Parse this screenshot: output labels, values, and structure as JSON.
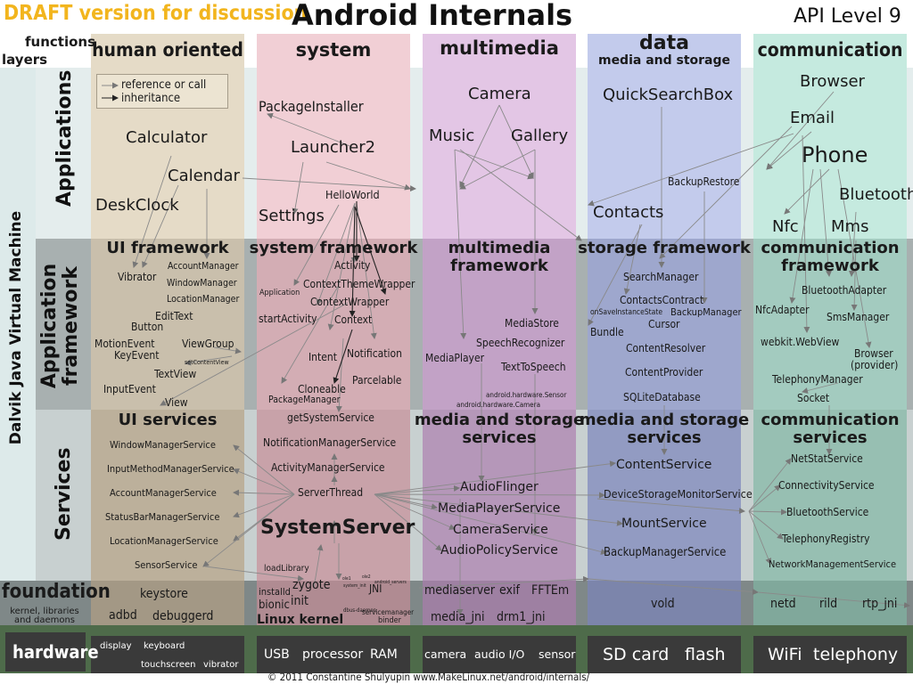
{
  "header": {
    "draft": "DRAFT version for discussion",
    "title": "Android Internals",
    "api": "API Level 9",
    "functions": "functions",
    "layers": "layers"
  },
  "sidebar": {
    "vm": "Dalvik Java Virtual Machine",
    "applications": "Applications",
    "app_framework": "Application framework",
    "services": "Services",
    "foundation": "foundation",
    "foundation_sub": "kernel, libraries and daemons",
    "hardware": "hardware"
  },
  "legend": {
    "reference": "reference or call",
    "inheritance": "inheritance"
  },
  "columns": {
    "human": "human oriented",
    "system": "system",
    "multimedia": "multimedia",
    "data": "data",
    "data_sub": "media and storage",
    "communication": "communication"
  },
  "colors": {
    "human": "#e5dbc7",
    "system": "#eec8cf",
    "multimedia": "#dcbcdf",
    "data": "#b9c2e6",
    "communication": "#bde6d9",
    "hardware": "#4e6b4a"
  },
  "apps": {
    "calculator": "Calculator",
    "calendar": "Calendar",
    "deskclock": "DeskClock",
    "packageinstaller": "PackageInstaller",
    "launcher2": "Launcher2",
    "helloworld": "HelloWorld",
    "settings": "Settings",
    "camera": "Camera",
    "music": "Music",
    "gallery": "Gallery",
    "quicksearchbox": "QuickSearchBox",
    "backuprestore": "BackupRestore",
    "contacts": "Contacts",
    "browser": "Browser",
    "email": "Email",
    "phone": "Phone",
    "bluetooth": "Bluetooth",
    "nfc": "Nfc",
    "mms": "Mms"
  },
  "frameworks": {
    "ui": "UI framework",
    "system": "system framework",
    "multimedia": "multimedia framework",
    "storage": "storage framework",
    "communication": "communication framework"
  },
  "fw": {
    "vibrator": "Vibrator",
    "accountmanager": "AccountManager",
    "windowmanager": "WindowManager",
    "locationmanager": "LocationManager",
    "edittext": "EditText",
    "button": "Button",
    "motionevent": "MotionEvent",
    "keyevent": "KeyEvent",
    "viewgroup": "ViewGroup",
    "setcontentview": "setContentView",
    "textview": "TextView",
    "inputevent": "InputEvent",
    "view": "View",
    "activity": "Activity",
    "contextthemewrapper": "ContextThemeWrapper",
    "application": "Application",
    "contextwrapper": "ContextWrapper",
    "startactivity": "startActivity",
    "context": "Context",
    "notification": "Notification",
    "intent": "Intent",
    "parcelable": "Parcelable",
    "cloneable": "Cloneable",
    "packagemanager": "PackageManager",
    "mediastore": "MediaStore",
    "speechrecognizer": "SpeechRecognizer",
    "mediaplayer": "MediaPlayer",
    "texttospeech": "TextToSpeech",
    "hwsensor": "android.hardware.Sensor",
    "hwcamera": "android.hardware.Camera",
    "searchmanager": "SearchManager",
    "contactscontract": "ContactsContract",
    "oninstancestate": "onSaveInstanceState",
    "backupmanager": "BackupManager",
    "bundle": "Bundle",
    "cursor": "Cursor",
    "contentresolver": "ContentResolver",
    "contentprovider": "ContentProvider",
    "sqlitedatabase": "SQLiteDatabase",
    "bluetoothadapter": "BluetoothAdapter",
    "nfcadapter": "NfcAdapter",
    "smsmanager": "SmsManager",
    "webview": "webkit.WebView",
    "browser_provider": "Browser",
    "browser_provider2": "(provider)",
    "telephonymanager": "TelephonyManager",
    "socket": "Socket"
  },
  "services_titles": {
    "ui": "UI services",
    "media_storage_1": "media and storage",
    "media_storage_2": "services",
    "data_1": "media and storage",
    "data_2": "services",
    "comm_1": "communication",
    "comm_2": "services"
  },
  "svc": {
    "windowmanagerservice": "WindowManagerService",
    "inputmethodmanagerservice": "InputMethodManagerService",
    "accountmanagerservice": "AccountManagerService",
    "statusbarmanagerservice": "StatusBarManagerService",
    "locationmanagerservice": "LocationManagerService",
    "sensorservice": "SensorService",
    "getsystemservice": "getSystemService",
    "notificationmanagerservice": "NotificationManagerService",
    "activitymanagerservice": "ActivityManagerService",
    "serverthread": "ServerThread",
    "systemserver": "SystemServer",
    "loadlibrary": "loadLibrary",
    "audioflinger": "AudioFlinger",
    "mediaplayerservice": "MediaPlayerService",
    "cameraservice": "CameraService",
    "audiopolicyservice": "AudioPolicyService",
    "contentservice": "ContentService",
    "devicestoragemonitorservice": "DeviceStorageMonitorService",
    "mountservice": "MountService",
    "backupmanagerservice": "BackupManagerService",
    "netstatservice": "NetStatService",
    "connectivityservice": "ConnectivityService",
    "bluetoothservice": "BluetoothService",
    "telephonyregistry": "TelephonyRegistry",
    "networkmanagementservice": "NetworkManagementService",
    "tiny1": "ole1",
    "tiny2": "ole2",
    "tiny3": "system_init",
    "tiny4": "android_servers"
  },
  "foundation": {
    "keystore": "keystore",
    "adbd": "adbd",
    "debuggerd": "debuggerd",
    "zygote": "zygote",
    "installd": "installd",
    "init": "init",
    "bionic": "bionic",
    "linuxkernel": "Linux kernel",
    "jni": "JNI",
    "dbusdaemon": "dbus-daemon",
    "servicemanager": "servicemanager",
    "binder": "binder",
    "mediaserver": "mediaserver",
    "exif": "exif",
    "fftem": "FFTEm",
    "mediajni": "media_jni",
    "drm1jni": "drm1_jni",
    "vold": "vold",
    "netd": "netd",
    "rild": "rild",
    "rtpjni": "rtp_jni"
  },
  "hardware": {
    "display": "display",
    "keyboard": "keyboard",
    "touchscreen": "touchscreen",
    "vibrator": "vibrator",
    "usb": "USB",
    "processor": "processor",
    "ram": "RAM",
    "camera": "camera",
    "audioio": "audio I/O",
    "sensor": "sensor",
    "sdcard": "SD card",
    "flash": "flash",
    "wifi": "WiFi",
    "telephony": "telephony"
  },
  "footer": {
    "copyright": "© 2011 Constantine Shulyupin www.MakeLinux.net/android/internals/"
  }
}
